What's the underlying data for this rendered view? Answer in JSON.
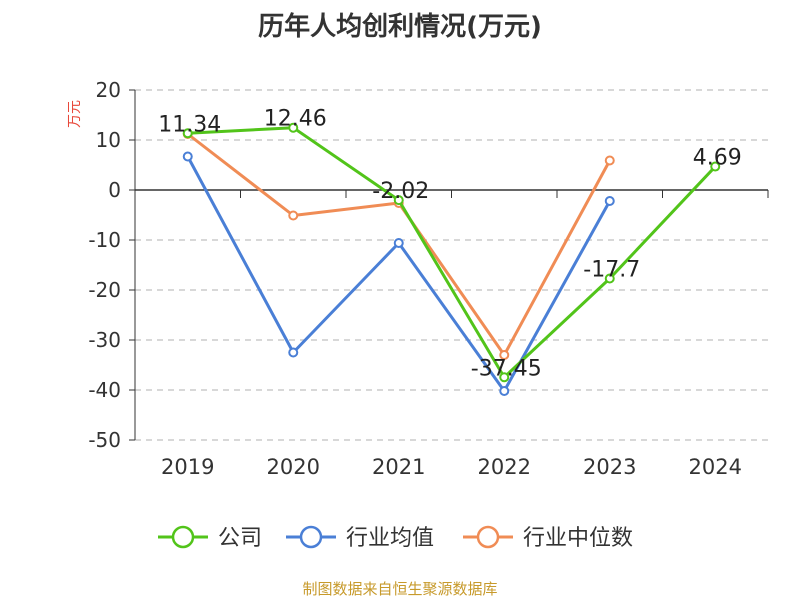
{
  "chart_data": {
    "type": "line",
    "title": "历年人均创利情况(万元)",
    "ylabel": "万元",
    "xlabel": "",
    "categories": [
      "2019",
      "2020",
      "2021",
      "2022",
      "2023",
      "2024"
    ],
    "ylim": [
      -50,
      20
    ],
    "yticks": [
      20,
      10,
      0,
      -10,
      -20,
      -30,
      -40,
      -50
    ],
    "grid": true,
    "legend_position": "bottom",
    "series": [
      {
        "name": "公司",
        "color": "#52c41a",
        "values": [
          11.34,
          12.46,
          -2.02,
          -37.45,
          -17.7,
          4.69
        ],
        "labels": [
          "11.34",
          "12.46",
          "-2.02",
          "-37.45",
          "-17.7",
          "4.69"
        ]
      },
      {
        "name": "行业均值",
        "color": "#4a7fd6",
        "values": [
          6.7,
          -32.5,
          -10.6,
          -40.2,
          -2.2,
          null
        ]
      },
      {
        "name": "行业中位数",
        "color": "#f08c55",
        "values": [
          11.2,
          -5.1,
          -2.6,
          -33.0,
          5.9,
          null
        ]
      }
    ]
  },
  "source": "制图数据来自恒生聚源数据库"
}
